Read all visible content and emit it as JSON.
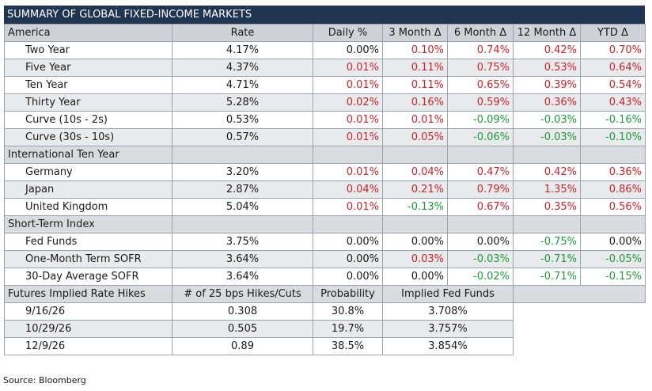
{
  "title": "SUMMARY OF GLOBAL FIXED-INCOME MARKETS",
  "columns": [
    "America",
    "Rate",
    "Daily %",
    "3 Month Δ",
    "6 Month Δ",
    "12 Month Δ",
    "YTD Δ"
  ],
  "sections": [
    {
      "name": "America",
      "is_header": true,
      "rows": [
        {
          "label": "Two Year",
          "rate": "4.17%",
          "daily": "0.00%",
          "m3": "0.10%",
          "m6": "0.74%",
          "m12": "0.42%",
          "ytd": "0.70%"
        },
        {
          "label": "Five Year",
          "rate": "4.37%",
          "daily": "0.01%",
          "m3": "0.11%",
          "m6": "0.75%",
          "m12": "0.53%",
          "ytd": "0.64%"
        },
        {
          "label": "Ten Year",
          "rate": "4.71%",
          "daily": "0.01%",
          "m3": "0.11%",
          "m6": "0.65%",
          "m12": "0.39%",
          "ytd": "0.54%"
        },
        {
          "label": "Thirty Year",
          "rate": "5.28%",
          "daily": "0.02%",
          "m3": "0.16%",
          "m6": "0.59%",
          "m12": "0.36%",
          "ytd": "0.43%"
        },
        {
          "label": "Curve (10s - 2s)",
          "rate": "0.53%",
          "daily": "0.01%",
          "m3": "0.01%",
          "m6": "-0.09%",
          "m12": "-0.03%",
          "ytd": "-0.16%"
        },
        {
          "label": "Curve (30s - 10s)",
          "rate": "0.57%",
          "daily": "0.01%",
          "m3": "0.05%",
          "m6": "-0.06%",
          "m12": "-0.03%",
          "ytd": "-0.10%"
        }
      ]
    },
    {
      "name": "International Ten Year",
      "rows": [
        {
          "label": "Germany",
          "rate": "3.20%",
          "daily": "0.01%",
          "m3": "0.04%",
          "m6": "0.47%",
          "m12": "0.42%",
          "ytd": "0.36%"
        },
        {
          "label": "Japan",
          "rate": "2.87%",
          "daily": "0.04%",
          "m3": "0.21%",
          "m6": "0.79%",
          "m12": "1.35%",
          "ytd": "0.86%"
        },
        {
          "label": "United Kingdom",
          "rate": "5.04%",
          "daily": "0.01%",
          "m3": "-0.13%",
          "m6": "0.67%",
          "m12": "0.35%",
          "ytd": "0.56%"
        }
      ]
    },
    {
      "name": "Short-Term Index",
      "rows": [
        {
          "label": "Fed Funds",
          "rate": "3.75%",
          "daily": "0.00%",
          "m3": "0.00%",
          "m6": "0.00%",
          "m12": "-0.75%",
          "ytd": "0.00%"
        },
        {
          "label": "One-Month Term SOFR",
          "rate": "3.64%",
          "daily": "0.00%",
          "m3": "0.03%",
          "m6": "-0.03%",
          "m12": "-0.71%",
          "ytd": "-0.05%"
        },
        {
          "label": "30-Day Average SOFR",
          "rate": "3.64%",
          "daily": "0.00%",
          "m3": "0.00%",
          "m6": "-0.02%",
          "m12": "-0.71%",
          "ytd": "-0.15%"
        }
      ]
    }
  ],
  "futures": {
    "header": [
      "Futures Implied Rate Hikes",
      "# of 25 bps Hikes/Cuts",
      "Probability",
      "Implied Fed Funds"
    ],
    "rows": [
      {
        "date": "9/16/26",
        "hikes": "0.308",
        "probability": "30.8%",
        "implied": "3.708%"
      },
      {
        "date": "10/29/26",
        "hikes": "0.505",
        "probability": "19.7%",
        "implied": "3.757%"
      },
      {
        "date": "12/9/26",
        "hikes": "0.89",
        "probability": "38.5%",
        "implied": "3.854%"
      }
    ]
  },
  "colors": {
    "positive": "#c8252c",
    "negative": "#1e9a3a",
    "neutral": "#1a1a1a",
    "title_bg": "#1f3551"
  },
  "source": "Source: Bloomberg"
}
